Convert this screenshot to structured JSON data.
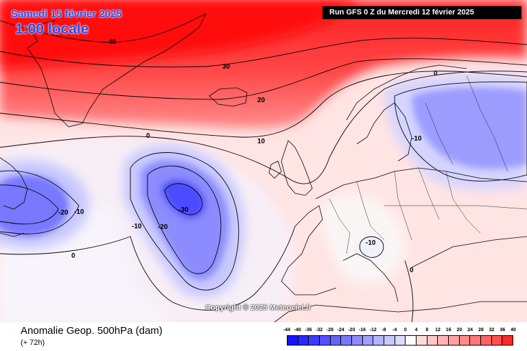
{
  "header": {
    "date": "Samedi 15 février 2025",
    "time": "1:00 locale",
    "run": "Run GFS 0 Z du Mercredi 12 février 2025"
  },
  "copyright": "Copyright © 2025 Meteociel.fr",
  "footer": {
    "title": "Anomalie Geop. 500hPa (dam)",
    "lead": "(+ 72h)"
  },
  "legend": {
    "labels": [
      "-44",
      "-40",
      "-36",
      "-32",
      "-28",
      "-24",
      "-20",
      "-16",
      "-12",
      "-8",
      "-4",
      "0",
      "4",
      "8",
      "12",
      "16",
      "20",
      "24",
      "28",
      "32",
      "36",
      "40"
    ],
    "colors": [
      "#1414ff",
      "#2828ff",
      "#3c3cff",
      "#5050ff",
      "#6464ff",
      "#7878ff",
      "#8c8cff",
      "#a0a0ff",
      "#b4b4ff",
      "#c8c8ff",
      "#dcdcff",
      "#ffffff",
      "#ffdcdc",
      "#ffc8c8",
      "#ffb4b4",
      "#ffa0a0",
      "#ff8c8c",
      "#ff7878",
      "#ff6464",
      "#ff5050",
      "#ff2828"
    ]
  },
  "contour_labels": [
    {
      "text": "40"
    },
    {
      "text": "30"
    },
    {
      "text": "20"
    },
    {
      "text": "10"
    },
    {
      "text": "0"
    },
    {
      "text": "0"
    },
    {
      "text": "0"
    },
    {
      "text": "-10"
    },
    {
      "text": "-10"
    },
    {
      "text": "-10"
    },
    {
      "text": "-10"
    },
    {
      "text": "-20"
    },
    {
      "text": "-20"
    },
    {
      "text": "-30"
    },
    {
      "text": "0"
    }
  ],
  "colors": {
    "strong_positive": "#ff2a2a",
    "positive": "#ff8c8c",
    "weak_positive": "#ffd8d8",
    "neutral": "#ffffff",
    "weak_negative": "#dcdcff",
    "negative": "#8c8cff",
    "strong_negative": "#4646ff",
    "title_blue": "#1e4fff"
  }
}
